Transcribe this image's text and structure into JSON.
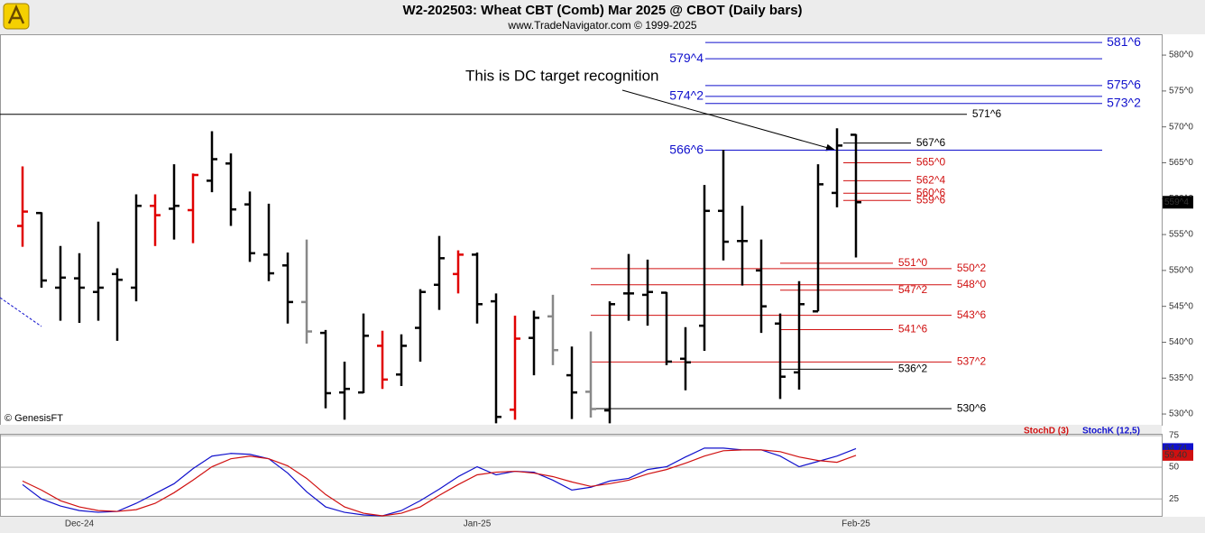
{
  "chart_data": [
    {
      "type": "ohlc",
      "title": "W2-202503:  Wheat CBT (Comb) Mar 2025 @ CBOT  (Daily bars)",
      "subtitle": "www.TradeNavigator.com © 1999-2025",
      "watermark": "© GenesisFT",
      "annotation": "This is DC target recognition",
      "categories": [
        null,
        null,
        null,
        "Dec-24",
        null,
        null,
        null,
        null,
        null,
        null,
        null,
        null,
        null,
        null,
        null,
        null,
        null,
        null,
        null,
        null,
        null,
        null,
        null,
        null,
        "Jan-25",
        null,
        null,
        null,
        null,
        null,
        null,
        null,
        null,
        null,
        null,
        null,
        null,
        null,
        null,
        null,
        null,
        null,
        null,
        null,
        "Feb-25"
      ],
      "open": [
        556.2,
        558.0,
        547.6,
        548.9,
        547.0,
        549.5,
        547.6,
        559.0,
        558.6,
        558.4,
        562.5,
        564.9,
        559.2,
        552.2,
        550.7,
        545.6,
        541.3,
        533.0,
        533.0,
        539.5,
        535.5,
        542.0,
        548.0,
        549.5,
        552.2,
        545.7,
        530.6,
        540.6,
        543.6,
        535.4,
        533.1,
        530.5,
        546.8,
        546.6,
        546.9,
        537.7,
        542.3,
        558.3,
        554.1,
        550.0,
        542.6,
        535.8,
        544.3,
        560.8,
        568.9
      ],
      "high": [
        564.5,
        558.1,
        553.4,
        552.4,
        556.8,
        550.3,
        560.6,
        560.6,
        564.8,
        563.5,
        569.4,
        566.3,
        561.0,
        559.3,
        552.5,
        554.3,
        541.7,
        537.3,
        544.0,
        541.6,
        541.1,
        547.4,
        554.8,
        552.8,
        552.5,
        546.8,
        543.7,
        544.4,
        546.6,
        539.4,
        541.5,
        545.7,
        552.3,
        551.5,
        547.0,
        542.1,
        561.9,
        566.8,
        559.0,
        554.3,
        544.0,
        548.5,
        564.8,
        569.8,
        569.0
      ],
      "low": [
        553.3,
        547.6,
        543.0,
        542.7,
        543.0,
        540.2,
        545.7,
        553.4,
        554.3,
        553.8,
        560.9,
        556.2,
        551.2,
        548.5,
        542.6,
        539.8,
        530.8,
        529.2,
        532.9,
        533.5,
        533.9,
        537.3,
        544.5,
        546.8,
        542.6,
        528.7,
        529.2,
        535.4,
        536.8,
        529.3,
        529.5,
        528.7,
        543.0,
        542.3,
        536.8,
        533.3,
        538.8,
        551.4,
        547.9,
        541.3,
        532.1,
        533.4,
        544.3,
        558.8,
        551.8
      ],
      "close": [
        558.2,
        548.6,
        549.0,
        547.6,
        547.6,
        548.7,
        559.0,
        557.7,
        559.0,
        563.3,
        565.5,
        558.5,
        552.4,
        549.6,
        545.6,
        541.5,
        532.9,
        533.5,
        540.9,
        534.8,
        539.5,
        547.0,
        551.7,
        552.2,
        545.3,
        529.6,
        540.5,
        543.4,
        538.9,
        533.0,
        530.7,
        545.3,
        546.8,
        547.0,
        537.3,
        537.2,
        558.3,
        554.0,
        554.1,
        545.0,
        535.2,
        545.3,
        562.0,
        567.4,
        559.5
      ],
      "colors": [
        "#e00000",
        "#000000",
        "#000000",
        "#000000",
        "#000000",
        "#000000",
        "#000000",
        "#e00000",
        "#000000",
        "#e00000",
        "#000000",
        "#000000",
        "#000000",
        "#000000",
        "#000000",
        "#888888",
        "#000000",
        "#000000",
        "#000000",
        "#e00000",
        "#000000",
        "#000000",
        "#000000",
        "#e00000",
        "#000000",
        "#000000",
        "#e00000",
        "#000000",
        "#888888",
        "#000000",
        "#888888",
        "#000000",
        "#000000",
        "#000000",
        "#000000",
        "#000000",
        "#000000",
        "#000000",
        "#000000",
        "#000000",
        "#000000",
        "#000000",
        "#000000",
        "#000000",
        "#000000"
      ],
      "ylim": [
        528.5,
        582.9
      ],
      "yticks": [
        {
          "value": 580,
          "label": "580^0"
        },
        {
          "value": 575,
          "label": "575^0"
        },
        {
          "value": 570,
          "label": "570^0"
        },
        {
          "value": 565,
          "label": "565^0"
        },
        {
          "value": 560,
          "label": "560^0"
        },
        {
          "value": 555,
          "label": "555^0"
        },
        {
          "value": 550,
          "label": "550^0"
        },
        {
          "value": 545,
          "label": "545^0"
        },
        {
          "value": 540,
          "label": "540^0"
        },
        {
          "value": 535,
          "label": "535^0"
        },
        {
          "value": 530,
          "label": "530^0"
        }
      ],
      "last_price": {
        "value": 559.5,
        "label": "559^4"
      },
      "levels": [
        {
          "value": 581.75,
          "label": "581^6",
          "color": "#1010cc"
        },
        {
          "value": 579.5,
          "label": "579^4",
          "color": "#1010cc"
        },
        {
          "value": 575.75,
          "label": "575^6",
          "color": "#1010cc"
        },
        {
          "value": 574.25,
          "label": "574^2",
          "color": "#1010cc"
        },
        {
          "value": 573.25,
          "label": "573^2",
          "color": "#1010cc"
        },
        {
          "value": 571.75,
          "label": "571^6",
          "color": "#000000"
        },
        {
          "value": 567.75,
          "label": "567^6",
          "color": "#000000"
        },
        {
          "value": 566.75,
          "label": "566^6",
          "color": "#1010cc"
        },
        {
          "value": 565,
          "label": "565^0",
          "color": "#d01010"
        },
        {
          "value": 562.5,
          "label": "562^4",
          "color": "#d01010"
        },
        {
          "value": 560.75,
          "label": "560^6",
          "color": "#d01010"
        },
        {
          "value": 559.75,
          "label": "559^6",
          "color": "#d01010"
        },
        {
          "value": 551,
          "label": "551^0",
          "color": "#d01010"
        },
        {
          "value": 550.25,
          "label": "550^2",
          "color": "#d01010"
        },
        {
          "value": 548,
          "label": "548^0",
          "color": "#d01010"
        },
        {
          "value": 547.25,
          "label": "547^2",
          "color": "#d01010"
        },
        {
          "value": 543.75,
          "label": "543^6",
          "color": "#d01010"
        },
        {
          "value": 541.75,
          "label": "541^6",
          "color": "#d01010"
        },
        {
          "value": 537.25,
          "label": "537^2",
          "color": "#d01010"
        },
        {
          "value": 536.25,
          "label": "536^2",
          "color": "#000000"
        },
        {
          "value": 530.75,
          "label": "530^6",
          "color": "#000000"
        }
      ]
    },
    {
      "type": "line",
      "ylim": [
        11.6,
        75.7
      ],
      "yticks": [
        25,
        50,
        75
      ],
      "grid": true,
      "series": [
        {
          "name": "StochK (12,5)",
          "color": "#1010cc",
          "values": [
            36.3,
            25.0,
            19.4,
            15.8,
            14.4,
            15.1,
            21.5,
            29.2,
            37.0,
            48.9,
            58.8,
            60.9,
            60.2,
            56.7,
            45.4,
            30.6,
            18.7,
            14.4,
            12.3,
            11.6,
            15.8,
            23.6,
            32.7,
            42.6,
            50.4,
            44.0,
            46.8,
            46.1,
            39.8,
            32.0,
            34.2,
            39.1,
            41.2,
            48.2,
            50.4,
            58.1,
            65.1,
            65.1,
            63.7,
            63.7,
            58.8,
            50.4,
            54.6,
            58.8,
            64.74
          ]
        },
        {
          "name": "StochD (3)",
          "color": "#d01010",
          "values": [
            39.1,
            32.0,
            23.6,
            18.7,
            15.8,
            15.1,
            16.5,
            21.5,
            29.9,
            39.8,
            50.4,
            56.7,
            58.8,
            56.7,
            51.1,
            41.2,
            28.5,
            18.7,
            13.7,
            11.6,
            13.7,
            18.7,
            27.8,
            36.3,
            44.0,
            46.1,
            46.8,
            45.4,
            42.6,
            38.4,
            34.9,
            37.0,
            39.8,
            44.7,
            48.2,
            53.2,
            58.8,
            63.0,
            63.7,
            63.7,
            62.3,
            58.1,
            55.3,
            53.9,
            59.4
          ],
          "value_labels": [
            null,
            null,
            null,
            null,
            null,
            null,
            null,
            null,
            null,
            null,
            null,
            null,
            null,
            null,
            null,
            null,
            null,
            null,
            null,
            null,
            null,
            null,
            null,
            null,
            null,
            null,
            null,
            null,
            null,
            null,
            null,
            null,
            null,
            null,
            null,
            null,
            null,
            null,
            null,
            null,
            null,
            null,
            null,
            null,
            "59.40"
          ]
        }
      ]
    }
  ]
}
